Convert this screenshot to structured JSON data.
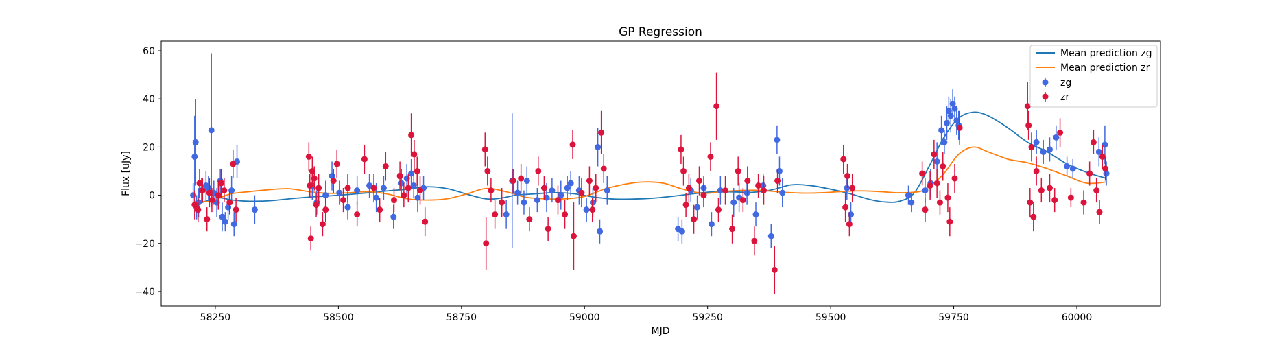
{
  "chart_data": {
    "type": "scatter",
    "title": "GP Regression",
    "xlabel": "MJD",
    "ylabel": "Flux [uJy]",
    "xlim": [
      58140,
      60170
    ],
    "ylim": [
      -46,
      64
    ],
    "xticks": [
      58250,
      58500,
      58750,
      59000,
      59250,
      59500,
      59750,
      60000
    ],
    "yticks": [
      -40,
      -20,
      0,
      20,
      40,
      60
    ],
    "grid": false,
    "legend": "top-right",
    "colors": {
      "zg_line": "#1f77b4",
      "zr_line": "#ff7f0e",
      "zg_points": "#4169e1",
      "zr_points": "#dc143c"
    },
    "lines": [
      {
        "name": "Mean prediction zg",
        "x": [
          58210,
          58230,
          58255,
          58285,
          58320,
          58360,
          58400,
          58440,
          58480,
          58520,
          58560,
          58600,
          58640,
          58680,
          58720,
          58760,
          58800,
          58830,
          58860,
          58900,
          58940,
          58980,
          59020,
          59060,
          59100,
          59140,
          59180,
          59220,
          59260,
          59300,
          59340,
          59380,
          59420,
          59460,
          59500,
          59540,
          59580,
          59610,
          59640,
          59670,
          59700,
          59730,
          59760,
          59790,
          59820,
          59860,
          59900,
          59940,
          59980,
          60020,
          60060
        ],
        "y": [
          -4.0,
          -2.5,
          -1.0,
          -2.0,
          -2.5,
          -2.3,
          -1.5,
          -0.8,
          -0.3,
          0.3,
          1.0,
          1.8,
          2.5,
          3.5,
          2.8,
          0.5,
          -1.5,
          -1.2,
          0.0,
          0.6,
          1.1,
          0.6,
          -0.8,
          -1.6,
          -1.6,
          -1.2,
          -0.4,
          0.6,
          1.4,
          1.4,
          1.2,
          2.2,
          4.3,
          4.0,
          2.5,
          0.6,
          -1.8,
          -2.8,
          -2.5,
          1.0,
          12.0,
          24.0,
          32.0,
          34.5,
          33.0,
          28.0,
          22.0,
          18.0,
          13.0,
          9.5,
          7.0
        ]
      },
      {
        "name": "Mean prediction zr",
        "x": [
          58210,
          58240,
          58280,
          58320,
          58360,
          58400,
          58440,
          58480,
          58520,
          58560,
          58600,
          58640,
          58680,
          58720,
          58760,
          58800,
          58840,
          58880,
          58920,
          58960,
          59000,
          59040,
          59080,
          59120,
          59160,
          59200,
          59240,
          59280,
          59320,
          59360,
          59400,
          59440,
          59480,
          59520,
          59560,
          59600,
          59640,
          59680,
          59700,
          59730,
          59760,
          59790,
          59820,
          59860,
          59900,
          59940,
          59980,
          60020,
          60060
        ],
        "y": [
          -2.5,
          -2.5,
          0.5,
          1.5,
          2.3,
          2.7,
          1.5,
          0.8,
          1.0,
          1.5,
          0.5,
          -1.5,
          -2.0,
          -1.5,
          0.5,
          2.8,
          1.5,
          -0.8,
          -1.5,
          -1.5,
          -0.5,
          2.5,
          4.5,
          5.5,
          5.0,
          2.5,
          0.8,
          1.5,
          2.0,
          2.0,
          1.3,
          0.9,
          1.0,
          1.5,
          1.8,
          1.5,
          1.0,
          1.5,
          3.5,
          9.0,
          17.0,
          20.0,
          18.0,
          15.0,
          13.5,
          11.0,
          8.0,
          5.0,
          5.5
        ]
      }
    ],
    "series": [
      {
        "name": "zg",
        "points": [
          [
            58205,
            0,
            5
          ],
          [
            58208,
            16,
            17
          ],
          [
            58210,
            22,
            18
          ],
          [
            58212,
            -5,
            5
          ],
          [
            58216,
            -3,
            6
          ],
          [
            58222,
            2,
            5
          ],
          [
            58231,
            4,
            6
          ],
          [
            58236,
            3,
            5
          ],
          [
            58242,
            27,
            32
          ],
          [
            58247,
            1,
            5
          ],
          [
            58253,
            -3,
            6
          ],
          [
            58260,
            6,
            5
          ],
          [
            58264,
            -9,
            6
          ],
          [
            58270,
            -11,
            4
          ],
          [
            58276,
            -5,
            5
          ],
          [
            58283,
            2,
            6
          ],
          [
            58288,
            -12,
            5
          ],
          [
            58294,
            14,
            7
          ],
          [
            58330,
            -6,
            6
          ],
          [
            58447,
            4,
            6
          ],
          [
            58456,
            -3,
            5
          ],
          [
            58474,
            0,
            6
          ],
          [
            58487,
            8,
            6
          ],
          [
            58502,
            1,
            5
          ],
          [
            58519,
            -5,
            5
          ],
          [
            58538,
            2,
            6
          ],
          [
            58563,
            4,
            5
          ],
          [
            58577,
            -1,
            6
          ],
          [
            58592,
            3,
            5
          ],
          [
            58612,
            -9,
            5
          ],
          [
            58628,
            5,
            6
          ],
          [
            58639,
            7,
            6
          ],
          [
            58648,
            9,
            6
          ],
          [
            58653,
            4,
            5
          ],
          [
            58661,
            -1,
            6
          ],
          [
            58673,
            3,
            5
          ],
          [
            58841,
            -8,
            6
          ],
          [
            58853,
            6,
            28
          ],
          [
            58864,
            1,
            5
          ],
          [
            58877,
            -3,
            5
          ],
          [
            58883,
            6,
            6
          ],
          [
            58904,
            -2,
            5
          ],
          [
            58923,
            -1,
            6
          ],
          [
            58934,
            2,
            5
          ],
          [
            58952,
            0,
            6
          ],
          [
            58965,
            3,
            5
          ],
          [
            58972,
            5,
            5
          ],
          [
            58989,
            2,
            6
          ],
          [
            59004,
            -6,
            5
          ],
          [
            59017,
            -3,
            6
          ],
          [
            59027,
            20,
            8
          ],
          [
            59031,
            -15,
            5
          ],
          [
            59046,
            2,
            6
          ],
          [
            59190,
            -14,
            5
          ],
          [
            59198,
            -15,
            5
          ],
          [
            59216,
            2,
            5
          ],
          [
            59229,
            -5,
            5
          ],
          [
            59242,
            3,
            5
          ],
          [
            59258,
            -12,
            5
          ],
          [
            59276,
            2,
            6
          ],
          [
            59303,
            -3,
            6
          ],
          [
            59314,
            -1,
            6
          ],
          [
            59330,
            1,
            5
          ],
          [
            59348,
            -8,
            5
          ],
          [
            59363,
            4,
            5
          ],
          [
            59379,
            -17,
            5
          ],
          [
            59391,
            23,
            6
          ],
          [
            59396,
            10,
            6
          ],
          [
            59402,
            1,
            6
          ],
          [
            59533,
            3,
            5
          ],
          [
            59541,
            -8,
            5
          ],
          [
            59658,
            0,
            4
          ],
          [
            59664,
            -3,
            4
          ],
          [
            59692,
            2,
            5
          ],
          [
            59703,
            5,
            6
          ],
          [
            59716,
            14,
            8
          ],
          [
            59725,
            27,
            6
          ],
          [
            59731,
            22,
            5
          ],
          [
            59736,
            30,
            7
          ],
          [
            59740,
            35,
            6
          ],
          [
            59744,
            33,
            7
          ],
          [
            59748,
            38,
            6
          ],
          [
            59752,
            36,
            5
          ],
          [
            59756,
            31,
            6
          ],
          [
            59760,
            29,
            6
          ],
          [
            59918,
            22,
            5
          ],
          [
            59932,
            18,
            5
          ],
          [
            59945,
            19,
            5
          ],
          [
            59958,
            24,
            5
          ],
          [
            59980,
            12,
            4
          ],
          [
            59992,
            11,
            4
          ],
          [
            60045,
            18,
            6
          ],
          [
            60057,
            21,
            8
          ],
          [
            60060,
            9,
            5
          ]
        ]
      },
      {
        "name": "zr",
        "points": [
          [
            58208,
            -4,
            6
          ],
          [
            58215,
            -6,
            5
          ],
          [
            58218,
            5,
            6
          ],
          [
            58224,
            2,
            5
          ],
          [
            58233,
            -10,
            5
          ],
          [
            58238,
            1,
            6
          ],
          [
            58243,
            -2,
            5
          ],
          [
            58256,
            0,
            6
          ],
          [
            58262,
            5,
            6
          ],
          [
            58268,
            2,
            5
          ],
          [
            58279,
            -3,
            5
          ],
          [
            58286,
            13,
            6
          ],
          [
            58292,
            -6,
            5
          ],
          [
            58440,
            16,
            6
          ],
          [
            58442,
            4,
            5
          ],
          [
            58444,
            -18,
            5
          ],
          [
            58447,
            10,
            6
          ],
          [
            58451,
            7,
            5
          ],
          [
            58455,
            -4,
            5
          ],
          [
            58460,
            3,
            6
          ],
          [
            58468,
            -12,
            5
          ],
          [
            58474,
            -6,
            5
          ],
          [
            58490,
            6,
            5
          ],
          [
            58497,
            13,
            6
          ],
          [
            58510,
            -2,
            5
          ],
          [
            58519,
            3,
            6
          ],
          [
            58538,
            -8,
            5
          ],
          [
            58553,
            15,
            6
          ],
          [
            58572,
            3,
            6
          ],
          [
            58584,
            -6,
            5
          ],
          [
            58596,
            12,
            6
          ],
          [
            58613,
            -2,
            5
          ],
          [
            58625,
            8,
            6
          ],
          [
            58633,
            0,
            5
          ],
          [
            58642,
            3,
            6
          ],
          [
            58648,
            25,
            9
          ],
          [
            58654,
            17,
            6
          ],
          [
            58660,
            10,
            6
          ],
          [
            58666,
            2,
            6
          ],
          [
            58676,
            -11,
            6
          ],
          [
            58798,
            19,
            7
          ],
          [
            58800,
            -20,
            11
          ],
          [
            58803,
            10,
            6
          ],
          [
            58810,
            2,
            5
          ],
          [
            58818,
            -8,
            6
          ],
          [
            58832,
            -3,
            6
          ],
          [
            58855,
            6,
            5
          ],
          [
            58871,
            7,
            6
          ],
          [
            58888,
            -10,
            5
          ],
          [
            58906,
            10,
            6
          ],
          [
            58918,
            3,
            5
          ],
          [
            58926,
            -14,
            5
          ],
          [
            58946,
            -2,
            6
          ],
          [
            58960,
            -8,
            6
          ],
          [
            58976,
            21,
            6
          ],
          [
            58978,
            -17,
            14
          ],
          [
            58994,
            1,
            6
          ],
          [
            59010,
            6,
            6
          ],
          [
            59016,
            -6,
            5
          ],
          [
            59023,
            3,
            6
          ],
          [
            59034,
            26,
            9
          ],
          [
            59039,
            11,
            6
          ],
          [
            59196,
            19,
            6
          ],
          [
            59201,
            10,
            6
          ],
          [
            59206,
            -4,
            5
          ],
          [
            59212,
            3,
            6
          ],
          [
            59222,
            -10,
            6
          ],
          [
            59233,
            6,
            6
          ],
          [
            59242,
            0,
            5
          ],
          [
            59256,
            16,
            6
          ],
          [
            59268,
            37,
            14
          ],
          [
            59272,
            -6,
            5
          ],
          [
            59286,
            2,
            6
          ],
          [
            59300,
            -14,
            6
          ],
          [
            59312,
            10,
            6
          ],
          [
            59322,
            -2,
            5
          ],
          [
            59331,
            6,
            6
          ],
          [
            59345,
            -19,
            6
          ],
          [
            59353,
            4,
            5
          ],
          [
            59364,
            2,
            6
          ],
          [
            59386,
            -31,
            10
          ],
          [
            59392,
            6,
            5
          ],
          [
            59526,
            15,
            6
          ],
          [
            59530,
            -5,
            6
          ],
          [
            59534,
            8,
            5
          ],
          [
            59538,
            -12,
            5
          ],
          [
            59544,
            3,
            6
          ],
          [
            59686,
            9,
            5
          ],
          [
            59692,
            -6,
            5
          ],
          [
            59702,
            4,
            6
          ],
          [
            59710,
            17,
            6
          ],
          [
            59716,
            5,
            6
          ],
          [
            59722,
            -3,
            5
          ],
          [
            59728,
            12,
            6
          ],
          [
            59738,
            -1,
            6
          ],
          [
            59742,
            -11,
            6
          ],
          [
            59752,
            7,
            6
          ],
          [
            59762,
            28,
            7
          ],
          [
            59900,
            37,
            10
          ],
          [
            59902,
            29,
            6
          ],
          [
            59905,
            -3,
            6
          ],
          [
            59908,
            20,
            6
          ],
          [
            59912,
            -9,
            6
          ],
          [
            59918,
            10,
            6
          ],
          [
            59928,
            2,
            5
          ],
          [
            59945,
            3,
            6
          ],
          [
            59955,
            -2,
            5
          ],
          [
            59966,
            26,
            6
          ],
          [
            59988,
            -1,
            4
          ],
          [
            60014,
            -3,
            5
          ],
          [
            60026,
            9,
            5
          ],
          [
            60034,
            22,
            5
          ],
          [
            60040,
            2,
            5
          ],
          [
            60046,
            -7,
            5
          ],
          [
            60052,
            16,
            5
          ],
          [
            60058,
            11,
            5
          ]
        ]
      }
    ]
  }
}
